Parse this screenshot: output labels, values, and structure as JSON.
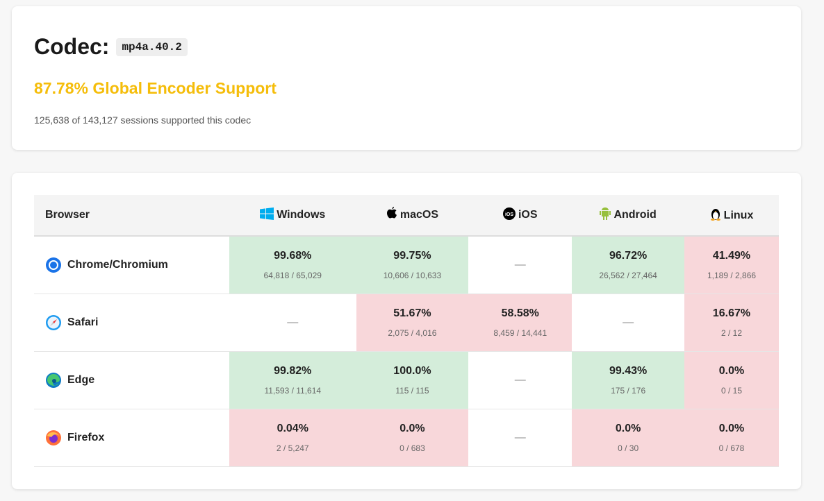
{
  "header": {
    "codec_label": "Codec:",
    "codec": "mp4a.40.2",
    "global": "87.78% Global Encoder Support",
    "sessions": "125,638 of 143,127 sessions supported this codec",
    "accent": "#f5bd0a"
  },
  "table": {
    "columns": [
      {
        "label": "Browser"
      },
      {
        "label": "Windows",
        "icon": "windows-icon"
      },
      {
        "label": "macOS",
        "icon": "apple-icon"
      },
      {
        "label": "iOS",
        "icon": "ios-icon"
      },
      {
        "label": "Android",
        "icon": "android-icon"
      },
      {
        "label": "Linux",
        "icon": "linux-icon"
      }
    ],
    "rows": [
      {
        "browser": "Chrome/Chromium",
        "icon": "chrome-icon",
        "cells": [
          {
            "pct": "99.68%",
            "count": "64,818 / 65,029",
            "status": "good"
          },
          {
            "pct": "99.75%",
            "count": "10,606 / 10,633",
            "status": "good"
          },
          {
            "dash": "—"
          },
          {
            "pct": "96.72%",
            "count": "26,562 / 27,464",
            "status": "good"
          },
          {
            "pct": "41.49%",
            "count": "1,189 / 2,866",
            "status": "bad"
          }
        ]
      },
      {
        "browser": "Safari",
        "icon": "safari-icon",
        "cells": [
          {
            "dash": "—"
          },
          {
            "pct": "51.67%",
            "count": "2,075 / 4,016",
            "status": "bad"
          },
          {
            "pct": "58.58%",
            "count": "8,459 / 14,441",
            "status": "bad"
          },
          {
            "dash": "—"
          },
          {
            "pct": "16.67%",
            "count": "2 / 12",
            "status": "bad"
          }
        ]
      },
      {
        "browser": "Edge",
        "icon": "edge-icon",
        "cells": [
          {
            "pct": "99.82%",
            "count": "11,593 / 11,614",
            "status": "good"
          },
          {
            "pct": "100.0%",
            "count": "115 / 115",
            "status": "good"
          },
          {
            "dash": "—"
          },
          {
            "pct": "99.43%",
            "count": "175 / 176",
            "status": "good"
          },
          {
            "pct": "0.0%",
            "count": "0 / 15",
            "status": "bad"
          }
        ]
      },
      {
        "browser": "Firefox",
        "icon": "firefox-icon",
        "cells": [
          {
            "pct": "0.04%",
            "count": "2 / 5,247",
            "status": "bad"
          },
          {
            "pct": "0.0%",
            "count": "0 / 683",
            "status": "bad"
          },
          {
            "dash": "—"
          },
          {
            "pct": "0.0%",
            "count": "0 / 30",
            "status": "bad"
          },
          {
            "pct": "0.0%",
            "count": "0 / 678",
            "status": "bad"
          }
        ]
      }
    ],
    "colors": {
      "good": "#d4edda",
      "bad": "#f8d7da"
    }
  }
}
